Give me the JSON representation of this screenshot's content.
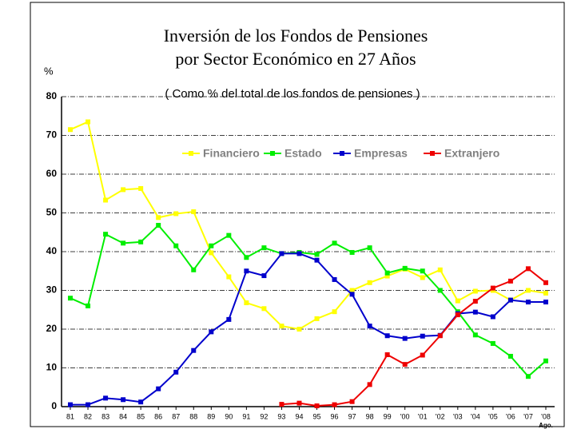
{
  "chart_data": {
    "type": "line",
    "title": [
      "Inversión de los Fondos de Pensiones",
      "por Sector Económico en 27 Años"
    ],
    "subtitle": "( Como % del total de los fondos de pensiones )",
    "y_label": "%",
    "x_note": "Ago.",
    "categories": [
      "81",
      "82",
      "83",
      "84",
      "85",
      "86",
      "87",
      "88",
      "89",
      "90",
      "91",
      "92",
      "93",
      "94",
      "95",
      "96",
      "97",
      "98",
      "99",
      "'00",
      "'01",
      "'02",
      "'03",
      "'04",
      "'05",
      "'06",
      "'07",
      "'08"
    ],
    "series": [
      {
        "name": "Financiero",
        "color": "#ffff00",
        "values": [
          71.5,
          73.5,
          53.3,
          56,
          56.3,
          48.8,
          49.8,
          50.3,
          39.7,
          33.5,
          26.8,
          25.3,
          20.8,
          20,
          22.7,
          24.5,
          30,
          32,
          33.7,
          35.5,
          33.3,
          35.3,
          27.3,
          29.8,
          30,
          27.5,
          30,
          29.3
        ]
      },
      {
        "name": "Estado",
        "color": "#00ee00",
        "values": [
          28,
          26,
          44.5,
          42.2,
          42.5,
          46.8,
          41.5,
          35.3,
          41.5,
          44.2,
          38.5,
          41,
          39.5,
          39.8,
          39.3,
          42.2,
          39.8,
          41,
          34.5,
          35.7,
          35,
          30,
          24.5,
          18.5,
          16.3,
          13,
          7.8,
          11.8
        ]
      },
      {
        "name": "Empresas",
        "color": "#0000cc",
        "values": [
          0.5,
          0.5,
          2.2,
          1.8,
          1.2,
          4.6,
          8.9,
          14.5,
          19.3,
          22.5,
          35,
          33.8,
          39.5,
          39.5,
          37.8,
          32.8,
          29,
          20.8,
          18.3,
          17.6,
          18.2,
          18.4,
          24,
          24.4,
          23.2,
          27.5,
          27,
          27
        ]
      },
      {
        "name": "Extranjero",
        "color": "#ee0000",
        "values": [
          null,
          null,
          null,
          null,
          null,
          null,
          null,
          null,
          null,
          null,
          null,
          null,
          0.6,
          0.9,
          0.2,
          0.5,
          1.3,
          5.7,
          13.4,
          10.9,
          13.3,
          18.3,
          23.7,
          27.2,
          30.6,
          32.4,
          35.6,
          32
        ]
      }
    ],
    "ylim": [
      0,
      80
    ],
    "yticks": [
      0,
      10,
      20,
      30,
      40,
      50,
      60,
      70,
      80
    ],
    "grid": true,
    "legend": "top-right"
  }
}
